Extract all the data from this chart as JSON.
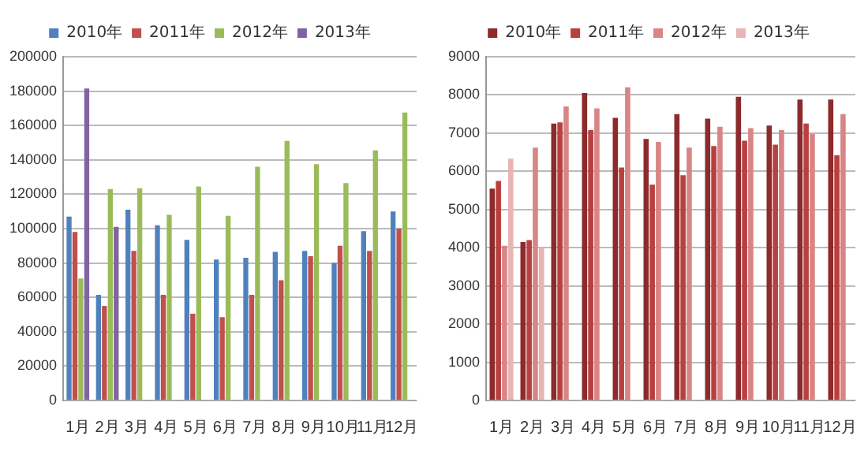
{
  "chart_data": [
    {
      "type": "bar",
      "categories": [
        "1月",
        "2月",
        "3月",
        "4月",
        "5月",
        "6月",
        "7月",
        "8月",
        "9月",
        "10月",
        "11月",
        "12月"
      ],
      "series": [
        {
          "name": "2010年",
          "color": "#4f81bd",
          "values": [
            107000,
            61500,
            111000,
            102000,
            93500,
            82000,
            83000,
            86500,
            87000,
            80000,
            98500,
            110000
          ]
        },
        {
          "name": "2011年",
          "color": "#c0504d",
          "values": [
            98000,
            55000,
            87000,
            61500,
            50500,
            48500,
            61500,
            70000,
            84000,
            90000,
            87000,
            100000
          ]
        },
        {
          "name": "2012年",
          "color": "#9bbb59",
          "values": [
            71000,
            123000,
            123500,
            108000,
            124500,
            107500,
            136000,
            151000,
            137500,
            126500,
            145500,
            167500
          ]
        },
        {
          "name": "2013年",
          "color": "#8064a2",
          "values": [
            181500,
            101000,
            null,
            null,
            null,
            null,
            null,
            null,
            null,
            null,
            null,
            null
          ]
        }
      ],
      "ylim": [
        0,
        200000
      ],
      "yticks": [
        0,
        20000,
        40000,
        60000,
        80000,
        100000,
        120000,
        140000,
        160000,
        180000,
        200000
      ],
      "grid": "y",
      "legend": "top"
    },
    {
      "type": "bar",
      "categories": [
        "1月",
        "2月",
        "3月",
        "4月",
        "5月",
        "6月",
        "7月",
        "8月",
        "9月",
        "10月",
        "11月",
        "12月"
      ],
      "series": [
        {
          "name": "2010年",
          "color": "#8c2a2c",
          "values": [
            5550,
            4150,
            7250,
            8050,
            7400,
            6850,
            7500,
            7380,
            7950,
            7200,
            7880,
            7880
          ]
        },
        {
          "name": "2011年",
          "color": "#b8403f",
          "values": [
            5750,
            4200,
            7280,
            7080,
            6100,
            5650,
            5900,
            6660,
            6800,
            6700,
            7250,
            6420
          ]
        },
        {
          "name": "2012年",
          "color": "#d98585",
          "values": [
            4050,
            6620,
            7700,
            7650,
            8200,
            6770,
            6620,
            7170,
            7130,
            7080,
            6980,
            7500
          ]
        },
        {
          "name": "2013年",
          "color": "#e8b4b4",
          "values": [
            6330,
            4000,
            null,
            null,
            null,
            null,
            null,
            null,
            null,
            null,
            null,
            null
          ]
        }
      ],
      "ylim": [
        0,
        9000
      ],
      "yticks": [
        0,
        1000,
        2000,
        3000,
        4000,
        5000,
        6000,
        7000,
        8000,
        9000
      ],
      "grid": "y",
      "legend": "top"
    }
  ]
}
